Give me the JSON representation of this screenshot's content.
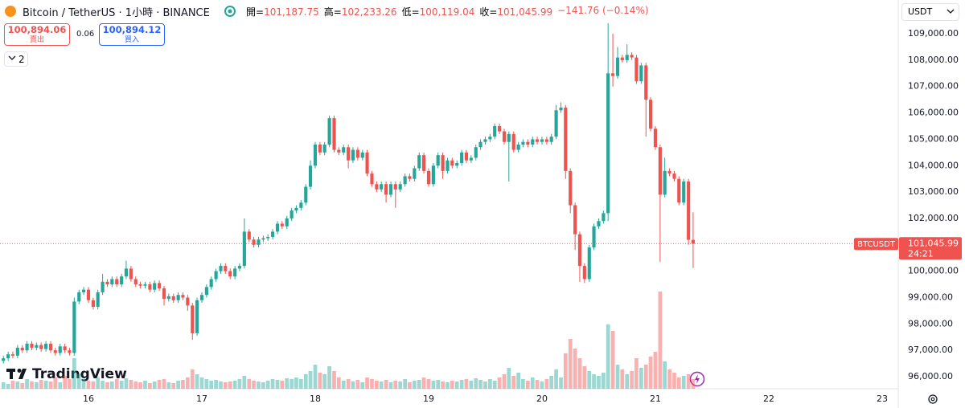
{
  "header": {
    "title": "Bitcoin / TetherUS · 1小時 · BINANCE",
    "ohlc": [
      {
        "label": "開=",
        "value": "101,187.75"
      },
      {
        "label": "高=",
        "value": "102,233.26"
      },
      {
        "label": "低=",
        "value": "100,119.04"
      },
      {
        "label": "收=",
        "value": "101,045.99"
      }
    ],
    "change": "−141.76 (−0.14%)"
  },
  "trade": {
    "sell_price": "100,894.06",
    "sell_label": "賣出",
    "spread": "0.06",
    "buy_price": "100,894.12",
    "buy_label": "買入",
    "layouts": "2"
  },
  "price_scale": {
    "currency": "USDT",
    "symbol": "BTCUSDT",
    "last_price": "101,045.99",
    "countdown": "24:21"
  },
  "brand": "TradingView",
  "chart_data": {
    "type": "candlestick",
    "up_color": "#26a69a",
    "down_color": "#ef5350",
    "x": [
      15.25,
      15.292,
      15.333,
      15.375,
      15.417,
      15.458,
      15.5,
      15.542,
      15.583,
      15.625,
      15.667,
      15.708,
      15.75,
      15.792,
      15.833,
      15.875,
      15.917,
      15.958,
      16,
      16.042,
      16.083,
      16.125,
      16.167,
      16.208,
      16.25,
      16.292,
      16.333,
      16.375,
      16.417,
      16.458,
      16.5,
      16.542,
      16.583,
      16.625,
      16.667,
      16.708,
      16.75,
      16.792,
      16.833,
      16.875,
      16.917,
      16.958,
      17,
      17.042,
      17.083,
      17.125,
      17.167,
      17.208,
      17.25,
      17.292,
      17.333,
      17.375,
      17.417,
      17.458,
      17.5,
      17.542,
      17.583,
      17.625,
      17.667,
      17.708,
      17.75,
      17.792,
      17.833,
      17.875,
      17.917,
      17.958,
      18,
      18.042,
      18.083,
      18.125,
      18.167,
      18.208,
      18.25,
      18.292,
      18.333,
      18.375,
      18.417,
      18.458,
      18.5,
      18.542,
      18.583,
      18.625,
      18.667,
      18.708,
      18.75,
      18.792,
      18.833,
      18.875,
      18.917,
      18.958,
      19,
      19.042,
      19.083,
      19.125,
      19.167,
      19.208,
      19.25,
      19.292,
      19.333,
      19.375,
      19.417,
      19.458,
      19.5,
      19.542,
      19.583,
      19.625,
      19.667,
      19.708,
      19.75,
      19.792,
      19.833,
      19.875,
      19.917,
      19.958,
      20,
      20.042,
      20.083,
      20.125,
      20.167,
      20.208,
      20.25,
      20.292,
      20.333,
      20.375,
      20.417,
      20.458,
      20.5,
      20.542,
      20.583,
      20.625,
      20.667,
      20.708,
      20.75,
      20.792,
      20.833,
      20.875,
      20.917,
      20.958,
      21,
      21.042,
      21.083,
      21.125,
      21.167,
      21.208,
      21.25,
      21.292,
      21.333
    ],
    "open": [
      96600,
      96700,
      96850,
      96800,
      97100,
      97000,
      97250,
      97100,
      97200,
      97050,
      97250,
      97000,
      96900,
      97150,
      97000,
      96900,
      98850,
      99200,
      99300,
      98900,
      98650,
      99200,
      99600,
      99500,
      99700,
      99500,
      99800,
      100100,
      99700,
      99500,
      99450,
      99500,
      99300,
      99550,
      99350,
      98950,
      99050,
      98900,
      99100,
      99000,
      98700,
      97650,
      98900,
      99100,
      99400,
      99700,
      100000,
      100200,
      100000,
      99800,
      100100,
      100200,
      101500,
      101200,
      101000,
      101200,
      101250,
      101300,
      101500,
      101800,
      101700,
      102000,
      102300,
      102400,
      102600,
      103200,
      104000,
      104800,
      104500,
      104800,
      105800,
      104600,
      104500,
      104700,
      104200,
      104600,
      104300,
      104500,
      103700,
      103300,
      103100,
      103300,
      102900,
      103300,
      103100,
      103300,
      103600,
      103500,
      103900,
      104400,
      103800,
      103300,
      104000,
      104400,
      103800,
      104200,
      104000,
      104100,
      104500,
      104200,
      104300,
      104700,
      104900,
      105000,
      105100,
      105500,
      105300,
      104900,
      105200,
      104600,
      104800,
      104900,
      104800,
      105000,
      104900,
      105000,
      104900,
      105100,
      106100,
      106200,
      103800,
      102500,
      101400,
      100200,
      99700,
      100900,
      101700,
      101900,
      102200,
      107500,
      107400,
      108100,
      108000,
      108200,
      108100,
      107200,
      107800,
      106500,
      105400,
      104700,
      102900,
      103800,
      103700,
      103500,
      102600,
      103400,
      101187.75
    ],
    "high": [
      96800,
      96950,
      96950,
      97200,
      97200,
      97350,
      97350,
      97300,
      97300,
      97350,
      97350,
      97100,
      97250,
      97250,
      97100,
      99000,
      99300,
      99400,
      99400,
      99000,
      99300,
      99900,
      99700,
      99800,
      99800,
      99900,
      100400,
      100200,
      99800,
      99600,
      99600,
      99600,
      99650,
      99650,
      99450,
      99150,
      99150,
      99200,
      99200,
      99100,
      98800,
      99000,
      99200,
      99500,
      99800,
      100100,
      100300,
      100300,
      100100,
      100200,
      100300,
      102000,
      101600,
      101300,
      101300,
      101350,
      101400,
      101600,
      101900,
      101900,
      102100,
      102400,
      102500,
      102700,
      103300,
      104200,
      104900,
      104900,
      104900,
      105900,
      105900,
      104700,
      104800,
      104800,
      104700,
      104700,
      104600,
      104600,
      103800,
      103400,
      103400,
      103400,
      103400,
      103400,
      103400,
      103700,
      103700,
      104000,
      104500,
      104500,
      103900,
      104100,
      104500,
      104500,
      104300,
      104300,
      104200,
      104600,
      104600,
      104400,
      104800,
      105000,
      105100,
      105200,
      105600,
      105600,
      105400,
      105300,
      105300,
      104900,
      105000,
      105000,
      105100,
      105100,
      105100,
      105100,
      105200,
      106300,
      106400,
      106300,
      103900,
      102600,
      101500,
      100300,
      101000,
      101800,
      102000,
      102300,
      109400,
      109000,
      108500,
      108200,
      108600,
      108300,
      108200,
      107900,
      107900,
      106600,
      105500,
      104800,
      104300,
      103900,
      103800,
      103600,
      103500,
      103500,
      102233.26
    ],
    "low": [
      96500,
      96600,
      96700,
      96700,
      96900,
      96900,
      97000,
      97000,
      96950,
      96950,
      96900,
      96800,
      96800,
      96900,
      96800,
      96800,
      98750,
      99100,
      98800,
      98550,
      98550,
      99100,
      99400,
      99400,
      99400,
      99400,
      99700,
      99600,
      99400,
      99350,
      99350,
      99200,
      99200,
      99250,
      98700,
      98850,
      98800,
      98800,
      98900,
      98500,
      97400,
      97550,
      98800,
      99000,
      99300,
      99600,
      99900,
      99900,
      99700,
      99700,
      100000,
      100100,
      101100,
      100900,
      100900,
      101100,
      101150,
      101200,
      101400,
      101600,
      101600,
      101900,
      102200,
      102300,
      102500,
      103100,
      103900,
      104400,
      104400,
      104700,
      104500,
      104400,
      104400,
      103900,
      104100,
      104200,
      104200,
      103600,
      103200,
      103000,
      103000,
      102600,
      102800,
      102400,
      103000,
      103200,
      103400,
      103400,
      103800,
      103700,
      103200,
      103200,
      103900,
      103500,
      103700,
      103900,
      103900,
      104000,
      104100,
      104100,
      104200,
      104600,
      104800,
      104900,
      105000,
      105200,
      104800,
      103400,
      104500,
      104500,
      104700,
      104700,
      104700,
      104800,
      104800,
      104800,
      104800,
      105000,
      106000,
      103500,
      102200,
      100800,
      99600,
      99550,
      99600,
      100800,
      101600,
      101800,
      101900,
      107000,
      107300,
      107900,
      107900,
      108000,
      107100,
      107100,
      105100,
      105300,
      104600,
      100350,
      102800,
      103600,
      103400,
      102500,
      102500,
      101000,
      100119.04
    ],
    "close": [
      96700,
      96850,
      96800,
      97100,
      97000,
      97250,
      97100,
      97200,
      97050,
      97250,
      97000,
      96900,
      97150,
      97000,
      96900,
      98850,
      99200,
      99300,
      98900,
      98650,
      99200,
      99600,
      99500,
      99700,
      99500,
      99800,
      100100,
      99700,
      99500,
      99450,
      99500,
      99300,
      99550,
      99350,
      98950,
      99050,
      98900,
      99100,
      99000,
      98700,
      97650,
      98900,
      99100,
      99400,
      99700,
      100000,
      100200,
      100000,
      99800,
      100100,
      100200,
      101500,
      101200,
      101000,
      101200,
      101250,
      101300,
      101500,
      101800,
      101700,
      102000,
      102300,
      102400,
      102600,
      103200,
      104000,
      104800,
      104500,
      104800,
      105800,
      104600,
      104500,
      104700,
      104200,
      104600,
      104300,
      104500,
      103700,
      103300,
      103100,
      103300,
      102900,
      103300,
      103100,
      103300,
      103600,
      103500,
      103900,
      104400,
      103800,
      103300,
      104000,
      104400,
      103800,
      104200,
      104000,
      104100,
      104500,
      104200,
      104300,
      104700,
      104900,
      105000,
      105100,
      105500,
      105300,
      104900,
      105200,
      104600,
      104800,
      104900,
      104800,
      105000,
      104900,
      105000,
      104900,
      105100,
      106100,
      106200,
      103800,
      102500,
      101400,
      100200,
      99700,
      100900,
      101700,
      101900,
      102200,
      107500,
      107400,
      108100,
      108000,
      108200,
      108100,
      107200,
      107800,
      106500,
      105400,
      104700,
      102900,
      103800,
      103700,
      103500,
      102600,
      103400,
      101190,
      101045.99
    ],
    "volume": [
      8,
      6,
      10,
      9,
      7,
      12,
      9,
      8,
      11,
      10,
      9,
      14,
      8,
      16,
      12,
      38,
      18,
      12,
      10,
      9,
      14,
      10,
      8,
      9,
      12,
      10,
      13,
      11,
      9,
      8,
      10,
      7,
      9,
      11,
      12,
      8,
      7,
      10,
      11,
      14,
      24,
      18,
      14,
      12,
      10,
      11,
      9,
      8,
      9,
      10,
      12,
      16,
      12,
      10,
      9,
      8,
      10,
      12,
      11,
      10,
      13,
      12,
      14,
      12,
      18,
      22,
      30,
      20,
      18,
      28,
      22,
      14,
      10,
      12,
      9,
      11,
      8,
      14,
      12,
      10,
      9,
      11,
      8,
      10,
      9,
      12,
      8,
      10,
      11,
      14,
      12,
      10,
      11,
      9,
      8,
      10,
      9,
      11,
      12,
      10,
      13,
      11,
      9,
      12,
      10,
      14,
      18,
      26,
      16,
      20,
      12,
      10,
      14,
      11,
      9,
      12,
      16,
      24,
      14,
      44,
      62,
      50,
      38,
      28,
      22,
      18,
      16,
      20,
      80,
      72,
      30,
      24,
      18,
      22,
      38,
      26,
      30,
      40,
      46,
      121,
      34,
      24,
      20,
      14,
      16,
      18,
      12
    ],
    "xlim": [
      15.22,
      23.135
    ],
    "xticks": [
      16,
      17,
      18,
      19,
      20,
      21,
      22,
      23
    ],
    "ylim": [
      95545,
      110280
    ],
    "yticks": [
      {
        "value": 96000,
        "label": "96,000.00"
      },
      {
        "value": 97000,
        "label": "97,000.00"
      },
      {
        "value": 98000,
        "label": "98,000.00"
      },
      {
        "value": 99000,
        "label": "99,000.00"
      },
      {
        "value": 100000,
        "label": "100,000.00"
      },
      {
        "value": 101000,
        "label": "101,000.00"
      },
      {
        "value": 102000,
        "label": "102,000.00"
      },
      {
        "value": 103000,
        "label": "103,000.00"
      },
      {
        "value": 104000,
        "label": "104,000.00"
      },
      {
        "value": 105000,
        "label": "105,000.00"
      },
      {
        "value": 106000,
        "label": "106,000.00"
      },
      {
        "value": 107000,
        "label": "107,000.00"
      },
      {
        "value": 108000,
        "label": "108,000.00"
      },
      {
        "value": 109000,
        "label": "109,000.00"
      }
    ],
    "grid": false
  }
}
